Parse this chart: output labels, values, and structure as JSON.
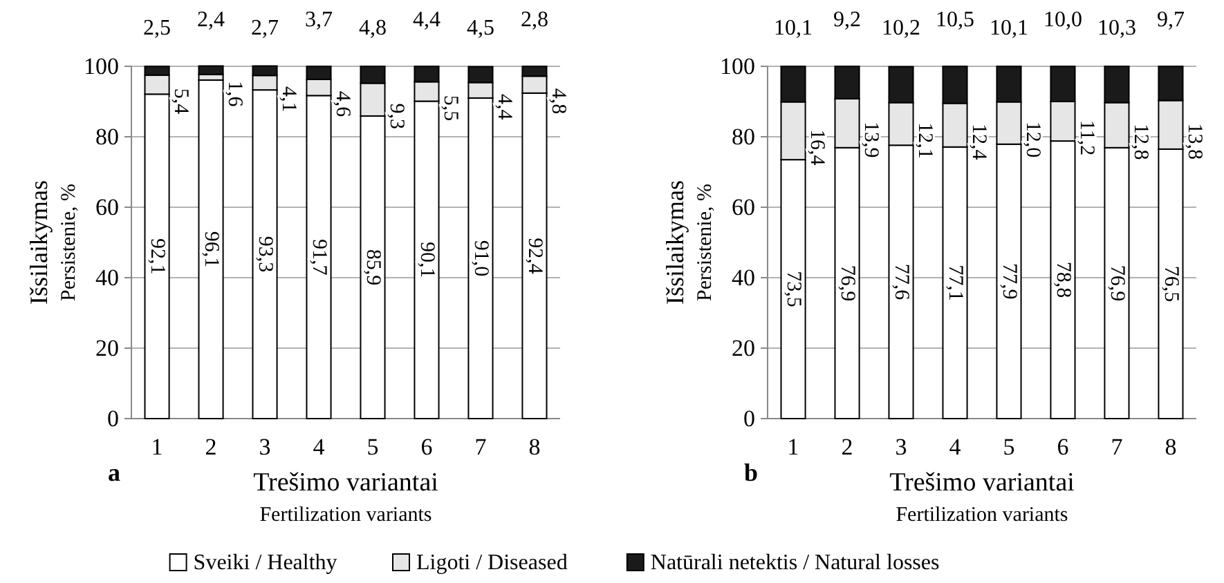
{
  "chart_data": [
    {
      "type": "bar",
      "stacked": true,
      "xlabel": "Trešimo variantai\nFertilization variants",
      "ylabel": "Išsilaikymas\nPersistenie, %",
      "categories": [
        "1",
        "2",
        "3",
        "4",
        "5",
        "6",
        "7",
        "8"
      ],
      "ylim": [
        0,
        100
      ],
      "yticks": [
        0,
        20,
        40,
        60,
        80,
        100
      ],
      "grid": "y",
      "legend": "bottom",
      "annotations": [
        "a"
      ],
      "series": [
        {
          "name": "Sveiki / Healthy",
          "color": "#ffffff",
          "values": [
            92.1,
            96.1,
            93.3,
            91.7,
            85.9,
            90.1,
            91.0,
            92.4
          ],
          "value_labels": [
            "92,1",
            "96,1",
            "93,3",
            "91,7",
            "85,9",
            "90,1",
            "91,0",
            "92,4"
          ]
        },
        {
          "name": "Ligoti / Diseased",
          "color": "#e6e6e6",
          "values": [
            5.4,
            1.6,
            4.1,
            4.6,
            9.3,
            5.5,
            4.4,
            4.8
          ],
          "value_labels": [
            "5,4",
            "1,6",
            "4,1",
            "4,6",
            "9,3",
            "5,5",
            "4,4",
            "4,8"
          ]
        },
        {
          "name": "Natūrali netektis / Natural losses",
          "color": "#1a1a1a",
          "values": [
            2.5,
            2.4,
            2.7,
            3.7,
            4.8,
            4.4,
            4.5,
            2.8
          ],
          "value_labels": [
            "2,5",
            "2,4",
            "2,7",
            "3,7",
            "4,8",
            "4,4",
            "4,5",
            "2,8"
          ]
        }
      ]
    },
    {
      "type": "bar",
      "stacked": true,
      "xlabel": "Trešimo variantai\nFertilization variants",
      "ylabel": "Išsilaikymas\nPersistenie, %",
      "categories": [
        "1",
        "2",
        "3",
        "4",
        "5",
        "6",
        "7",
        "8"
      ],
      "ylim": [
        0,
        100
      ],
      "yticks": [
        0,
        20,
        40,
        60,
        80,
        100
      ],
      "grid": "y",
      "annotations": [
        "b"
      ],
      "series": [
        {
          "color": "#ffffff",
          "values": [
            73.5,
            76.9,
            77.6,
            77.1,
            77.9,
            78.8,
            76.9,
            76.5
          ],
          "value_labels": [
            "73,5",
            "76,9",
            "77,6",
            "77,1",
            "77,9",
            "78,8",
            "76,9",
            "76,5"
          ]
        },
        {
          "color": "#e6e6e6",
          "values": [
            16.4,
            13.9,
            12.1,
            12.4,
            12.0,
            11.2,
            12.8,
            13.8
          ],
          "value_labels": [
            "16,4",
            "13,9",
            "12,1",
            "12,4",
            "12,0",
            "11,2",
            "12,8",
            "13,8"
          ]
        },
        {
          "color": "#1a1a1a",
          "values": [
            10.1,
            9.2,
            10.2,
            10.5,
            10.1,
            10.0,
            10.3,
            9.7
          ],
          "value_labels": [
            "10,1",
            "9,2",
            "10,2",
            "10,5",
            "10,1",
            "10,0",
            "10,3",
            "9,7"
          ]
        }
      ]
    }
  ]
}
